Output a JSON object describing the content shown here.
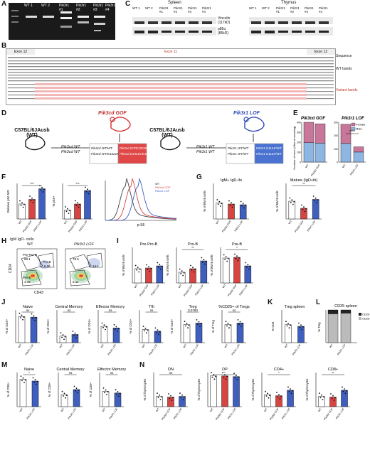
{
  "panels": [
    "A",
    "B",
    "C",
    "D",
    "E",
    "F",
    "G",
    "H",
    "I",
    "J",
    "K",
    "L",
    "M",
    "N"
  ],
  "A": {
    "lanes": [
      "WT 1",
      "WT 2",
      "Pik3r1 #1",
      "Pik3r1 #2",
      "Pik3r1 #3",
      "Pik3r1 #4"
    ]
  },
  "B": {
    "exon12": "Exon 12",
    "exon11": "Exon 11",
    "exon12b": "Exon 12",
    "seq_label": "Sequence",
    "wt_label": "WT bands",
    "var_label": "Variant bands"
  },
  "C": {
    "spleen": "Spleen",
    "thymus": "Thymus",
    "lanes": [
      "WT 1",
      "WT 2",
      "Pik3r1 #1",
      "Pik3r1 #2",
      "Pik3r1 #3",
      "Pik3r1 #4"
    ],
    "lanes_t": [
      "WT 1",
      "WT 2",
      "Pik3r1 #1",
      "Pik3r1 #2",
      "Pik3r1 #3",
      "Pik3r1 #4"
    ],
    "vinculin": "Vinculin",
    "vinculin_kd": "(117kD)",
    "p85": "p85α",
    "p85_kd": "(85kD)"
  },
  "D": {
    "gof_title": "Pik3cd GOF",
    "lof_title": "Pik3r1 LOF",
    "strain": "C57BL/6JAusb",
    "wt": "(WT)",
    "gof_left1": "Pik3cd WT",
    "gof_left2": "Pik3cd WT",
    "gof_g1": "Pik3cd WT/E1021K",
    "gof_g2": "Pik3cd E1021K/E1021K",
    "gof_g3": "Pik3cd WT/WT",
    "lof_left1": "Pik3r1 WT",
    "lof_left2": "Pik3r1 WT",
    "lof_g1": "Pik3r1 WT/WT",
    "lof_g2": "Pik3r1 WT/WT",
    "lof_g3": "Pik3r1 E11ΔF/WT"
  },
  "E": {
    "title_gof": "Pik3cd GOF",
    "title_lof": "Pik3r1 LOF",
    "ylabel": "Number of mice (Alive at weaning)",
    "legend": [
      "Female",
      "Male"
    ],
    "sig": "****",
    "x1": [
      "WT",
      "Pik3cd GOF"
    ],
    "x2": [
      "WT",
      "Pik3r1 LOF"
    ],
    "yt1": [
      "0",
      "100",
      "200",
      "300",
      "400"
    ],
    "yt2": [
      "0",
      "100",
      "200",
      "300"
    ],
    "colors": {
      "female": "#c8779a",
      "male": "#8eb6e3"
    }
  },
  "F": {
    "ylab1": "Relative pS6 MFI",
    "ylab2": "% pS6+",
    "legend": [
      "WT",
      "Pik3cd GOF",
      "Pik3r1 LOF"
    ],
    "xlab": "p-S6",
    "sig1": [
      "***",
      "*",
      "*"
    ],
    "sig2": [
      "***",
      "**"
    ]
  },
  "G": {
    "t1": "IgM+ IgD-/lo",
    "t2": "Mature (IgD+hi)",
    "ylab": "% of BM B cells",
    "sig": [
      "**",
      "*"
    ]
  },
  "H": {
    "t": "IgM IgD- cells",
    "wt": "WT",
    "lof": "Pik3r1 LOF",
    "gates": {
      "wt": [
        "Pre-Pro-B",
        "88.1",
        "Pro-B",
        "6.36",
        "Pre-B",
        "4.45"
      ],
      "lof": [
        "78.5",
        "14.1",
        "5.11"
      ]
    },
    "xlab": "CD43",
    "ylab": "CD24"
  },
  "I": {
    "t": [
      "Pre-Pro-B",
      "Pro-B",
      "Pre-B"
    ],
    "ylab": "% of BM B cells",
    "sig": [
      "**",
      "*",
      "*",
      "**"
    ]
  },
  "J": {
    "t": [
      "Naive",
      "Central Memory",
      "Effector Memory",
      "Tfh",
      "Treg",
      "%CD25+ of Tregs"
    ],
    "ylab": [
      "% of CD4+",
      "% of CD4+",
      "% of CD4+",
      "% of CD4+",
      "% of CD4+",
      "% of Treg"
    ],
    "ns": [
      "ns",
      "ns",
      "ns",
      "ns",
      "0.0760",
      "ns"
    ]
  },
  "K": {
    "t": "Treg spleen",
    "ylab": "% CD4"
  },
  "L": {
    "t": "CD25 spleen",
    "legend": [
      "CD25+",
      "CD25-"
    ],
    "ylab": "% Treg"
  },
  "M": {
    "t": [
      "Naive",
      "Central Memory",
      "Effector Memory"
    ],
    "ylab": "% of CD8+",
    "ns": [
      "*",
      "ns",
      "ns"
    ]
  },
  "N": {
    "t": [
      "DN",
      "DP",
      "CD4+",
      "CD8+"
    ],
    "ylab": "% of thymocytes",
    "sig": [
      "ns",
      "*",
      "*",
      "**"
    ]
  },
  "xcat": {
    "wt": "WT",
    "gof": "Pik3cd GOF",
    "lof": "Pik3r1 LOF"
  }
}
